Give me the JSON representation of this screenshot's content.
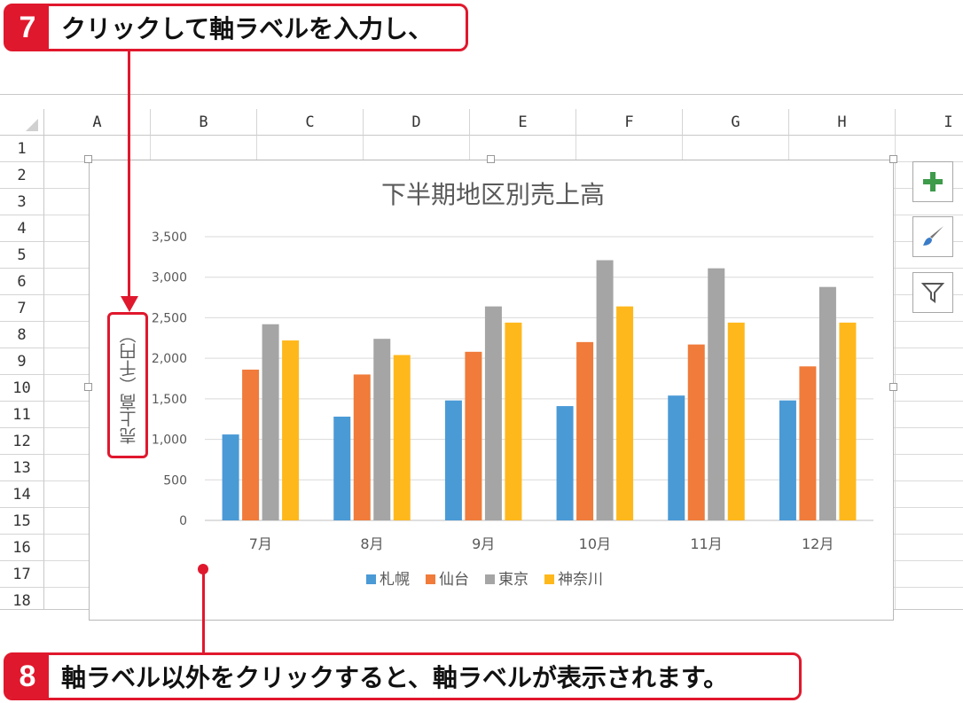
{
  "callout_top": {
    "number": "7",
    "text": "クリックして軸ラベルを入力し、"
  },
  "callout_bottom": {
    "number": "8",
    "text": "軸ラベル以外をクリックすると、軸ラベルが表示されます。"
  },
  "sheet": {
    "columns": [
      "A",
      "B",
      "C",
      "D",
      "E",
      "F",
      "G",
      "H",
      "I"
    ],
    "rows": [
      "1",
      "2",
      "3",
      "4",
      "5",
      "6",
      "7",
      "8",
      "9",
      "10",
      "11",
      "12",
      "13",
      "14",
      "15",
      "16",
      "17",
      "18"
    ]
  },
  "side_buttons": [
    {
      "icon": "plus-icon",
      "color": "#3d9b4a"
    },
    {
      "icon": "paintbrush-icon",
      "color": "#3a7cc8"
    },
    {
      "icon": "filter-icon",
      "color": "#555555"
    }
  ],
  "chart_data": {
    "type": "bar",
    "title": "下半期地区別売上高",
    "ylabel": "売上高（千円）",
    "xlabel": "",
    "categories": [
      "7月",
      "8月",
      "9月",
      "10月",
      "11月",
      "12月"
    ],
    "series": [
      {
        "name": "札幌",
        "color": "#4a9ad6",
        "values": [
          1060,
          1280,
          1480,
          1410,
          1540,
          1480
        ]
      },
      {
        "name": "仙台",
        "color": "#f07b3a",
        "values": [
          1860,
          1800,
          2080,
          2200,
          2170,
          1900
        ]
      },
      {
        "name": "東京",
        "color": "#a5a5a5",
        "values": [
          2420,
          2240,
          2640,
          3210,
          3110,
          2880
        ]
      },
      {
        "name": "神奈川",
        "color": "#ffb81c",
        "values": [
          2220,
          2040,
          2440,
          2640,
          2440,
          2440
        ]
      }
    ],
    "yticks": [
      0,
      500,
      1000,
      1500,
      2000,
      2500,
      3000,
      3500
    ],
    "ytick_labels": [
      "0",
      "500",
      "1,000",
      "1,500",
      "2,000",
      "2,500",
      "3,000",
      "3,500"
    ],
    "ylim": [
      0,
      3500
    ],
    "grid": true,
    "legend": "bottom"
  }
}
